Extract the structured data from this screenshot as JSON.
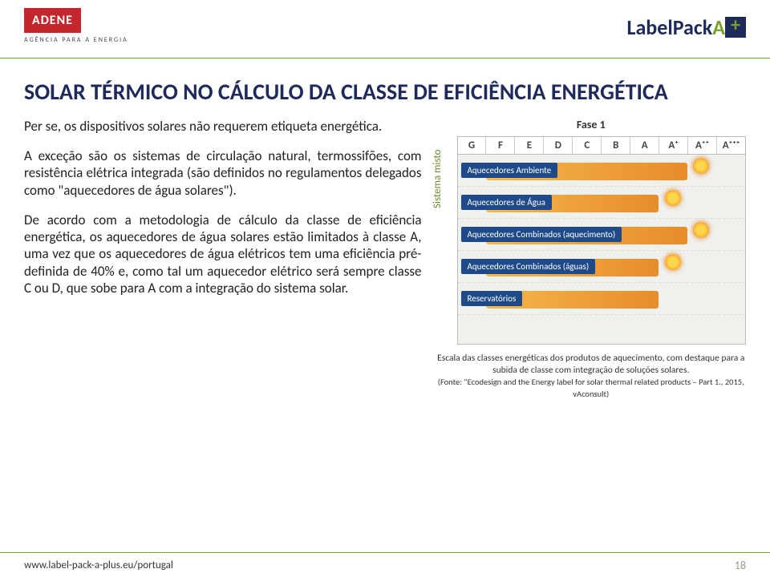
{
  "logos": {
    "adene": "ADENE",
    "adene_sub": "AGÊNCIA PARA A ENERGIA",
    "labelpack_a": "LabelPack",
    "labelpack_b": "A",
    "labelpack_plus": "+"
  },
  "title": "SOLAR TÉRMICO NO CÁLCULO DA CLASSE DE EFICIÊNCIA ENERGÉTICA",
  "paragraphs": {
    "p1": "Per se, os dispositivos solares não requerem etiqueta energética.",
    "p2": "A exceção são os sistemas de circulação natural, termossifões, com resistência elétrica integrada (são definidos no regulamentos delegados como \"aquecedores de água solares\").",
    "p3": "De acordo com a metodologia de cálculo da classe de eficiência energética, os aquecedores de água solares estão limitados à classe A, uma vez que os aquecedores de água elétricos tem uma eficiência pré-definida de 40% e, como tal um aquecedor elétrico será sempre classe C ou D, que sobe para A com a integração do sistema solar."
  },
  "chart": {
    "fase": "Fase 1",
    "ylabel": "Sistema misto",
    "classes": [
      "G",
      "F",
      "E",
      "D",
      "C",
      "B",
      "A",
      "A⁺",
      "A⁺⁺",
      "A⁺⁺⁺"
    ],
    "caption_main": "Escala das classes energéticas dos produtos de aquecimento, com destaque para a subida de classe com integração de soluções solares.",
    "caption_src": "(Fonte: \"Ecodesign and the Energy label for solar thermal related products – Part 1., 2015, vAconsult)",
    "rows": [
      {
        "label": "Aquecedores Ambiente",
        "bar_left_pct": 10,
        "bar_width_pct": 70,
        "sun_left_pct": 82
      },
      {
        "label": "Aquecedores de Água",
        "bar_left_pct": 10,
        "bar_width_pct": 60,
        "sun_left_pct": 72
      },
      {
        "label": "Aquecedores Combinados (aquecimento)",
        "bar_left_pct": 10,
        "bar_width_pct": 70,
        "sun_left_pct": 82
      },
      {
        "label": "Aquecedores Combinados (águas)",
        "bar_left_pct": 10,
        "bar_width_pct": 60,
        "sun_left_pct": 72
      },
      {
        "label": "Reservatórios",
        "bar_left_pct": 10,
        "bar_width_pct": 60,
        "sun_left_pct": 0
      }
    ],
    "colors": {
      "pill_bg": "#1e4a8a",
      "bar_from": "#f5b84a",
      "bar_to": "#e88c2a",
      "grid_bg": "#f0f0ec"
    }
  },
  "footer": {
    "url": "www.label-pack-a-plus.eu/portugal",
    "page": "18"
  }
}
